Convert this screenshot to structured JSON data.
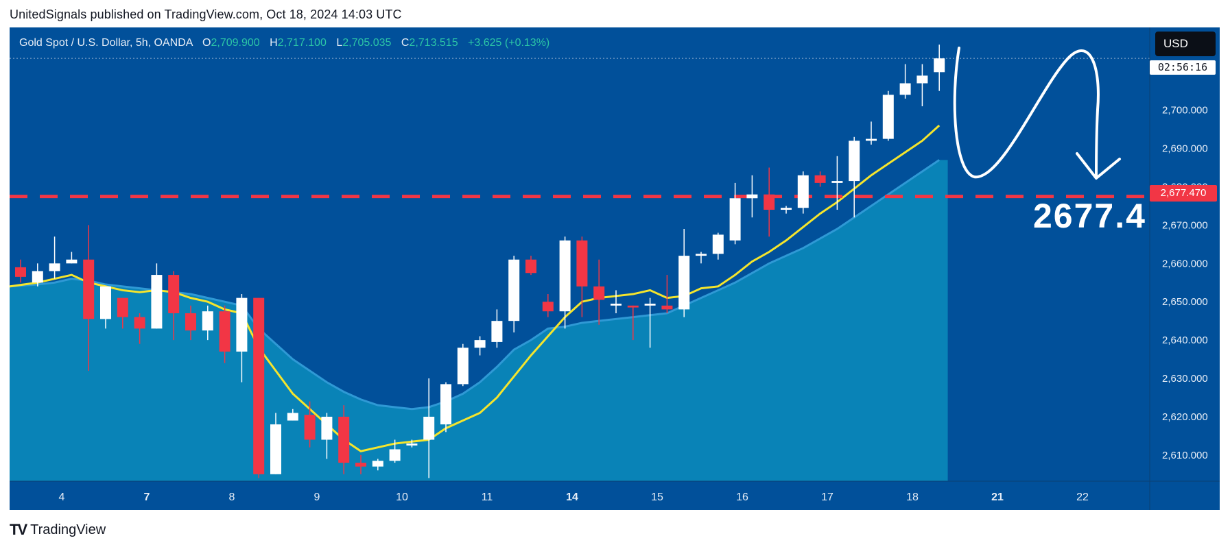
{
  "header": {
    "text": "UnitedSignals published on TradingView.com, Oct 18, 2024 14:03 UTC"
  },
  "legend": {
    "symbol": "Gold Spot / U.S. Dollar, 5h, OANDA",
    "open_label": "O",
    "open": "2,709.900",
    "high_label": "H",
    "high": "2,717.100",
    "low_label": "L",
    "low": "2,705.035",
    "close_label": "C",
    "close": "2,713.515",
    "change": "+3.625 (+0.13%)"
  },
  "price_scale": {
    "currency": "USD",
    "countdown": "02:56:16",
    "marked_price": "2,677.470"
  },
  "annotation": {
    "text": "2677.4"
  },
  "footer": {
    "brand": "TradingView"
  },
  "colors": {
    "background": "#01509a",
    "up": "#ffffff",
    "down": "#f23645",
    "ema_fast": "#f5e52c",
    "ema_slow": "#2f99d5",
    "area": "#0a86b8",
    "level": "#f23645"
  },
  "icons": {
    "logo": "tradingview-logo-icon"
  },
  "chart_data": {
    "type": "candlestick",
    "title": "Gold Spot / U.S. Dollar, 5h, OANDA",
    "y_ticks": [
      "2,610.000",
      "2,620.000",
      "2,630.000",
      "2,640.000",
      "2,650.000",
      "2,660.000",
      "2,670.000",
      "2,680.000",
      "2,690.000",
      "2,700.000"
    ],
    "ylim": [
      2603,
      2718
    ],
    "x_labels": [
      {
        "label": "4",
        "pos": 2.5
      },
      {
        "label": "7",
        "pos": 7.5
      },
      {
        "label": "8",
        "pos": 12.5
      },
      {
        "label": "9",
        "pos": 17.5
      },
      {
        "label": "10",
        "pos": 22.5
      },
      {
        "label": "11",
        "pos": 27.5
      },
      {
        "label": "14",
        "pos": 32.5
      },
      {
        "label": "15",
        "pos": 37.5
      },
      {
        "label": "16",
        "pos": 42.5
      },
      {
        "label": "17",
        "pos": 47.5
      },
      {
        "label": "18",
        "pos": 52.5
      },
      {
        "label": "21",
        "pos": 57.5
      },
      {
        "label": "22",
        "pos": 62.5
      }
    ],
    "x_labels_bold": [
      "7",
      "14",
      "21"
    ],
    "horizontal_line": 2677.47,
    "candles": [
      [
        2659,
        2656.5,
        2661,
        2655
      ],
      [
        2655,
        2658,
        2660,
        2654
      ],
      [
        2658,
        2660,
        2667,
        2656
      ],
      [
        2660,
        2661,
        2663,
        2660
      ],
      [
        2661,
        2645.5,
        2670,
        2632
      ],
      [
        2645.5,
        2654,
        2654,
        2643
      ],
      [
        2651,
        2646,
        2651,
        2643
      ],
      [
        2646,
        2643,
        2647,
        2639
      ],
      [
        2643,
        2657,
        2660,
        2643
      ],
      [
        2657,
        2647,
        2658,
        2640
      ],
      [
        2647,
        2642.5,
        2649,
        2640
      ],
      [
        2642.5,
        2647.5,
        2649,
        2640
      ],
      [
        2647.5,
        2637,
        2649,
        2634
      ],
      [
        2637,
        2651,
        2652,
        2629
      ],
      [
        2651,
        2605,
        2651,
        2604
      ],
      [
        2605,
        2618,
        2621,
        2605
      ],
      [
        2619,
        2621,
        2622,
        2619
      ],
      [
        2620.5,
        2614,
        2624,
        2612
      ],
      [
        2614,
        2620,
        2621,
        2609
      ],
      [
        2620,
        2608,
        2623,
        2605
      ],
      [
        2608,
        2607,
        2610,
        2605
      ],
      [
        2607,
        2608.5,
        2609,
        2606
      ],
      [
        2608.5,
        2611.5,
        2614,
        2608
      ],
      [
        2612.5,
        2613,
        2614,
        2612
      ],
      [
        2614,
        2620,
        2630,
        2604
      ],
      [
        2618,
        2628.5,
        2629,
        2616
      ],
      [
        2628.5,
        2638,
        2639,
        2628
      ],
      [
        2638,
        2640,
        2641,
        2636
      ],
      [
        2639.5,
        2645,
        2648,
        2638
      ],
      [
        2645,
        2661,
        2662,
        2642
      ],
      [
        2661,
        2657.5,
        2662,
        2657
      ],
      [
        2650,
        2647.5,
        2652,
        2646
      ],
      [
        2647.5,
        2666,
        2667,
        2643
      ],
      [
        2666,
        2654,
        2667,
        2646
      ],
      [
        2654,
        2650.5,
        2661,
        2644
      ],
      [
        2649,
        2649.5,
        2653,
        2647
      ],
      [
        2649,
        2648.5,
        2649,
        2640
      ],
      [
        2649,
        2649.5,
        2651,
        2638
      ],
      [
        2649,
        2648,
        2657,
        2647
      ],
      [
        2648,
        2662,
        2669,
        2646
      ],
      [
        2662,
        2662.5,
        2663,
        2660
      ],
      [
        2662.5,
        2667.5,
        2668,
        2661
      ],
      [
        2666,
        2677,
        2681,
        2665
      ],
      [
        2677,
        2678,
        2683,
        2672
      ],
      [
        2678,
        2674,
        2685,
        2667
      ],
      [
        2674,
        2674.5,
        2675,
        2673
      ],
      [
        2674.5,
        2683,
        2684,
        2673
      ],
      [
        2683,
        2681,
        2684,
        2680
      ],
      [
        2681,
        2681.5,
        2688,
        2674
      ],
      [
        2681.5,
        2692,
        2693,
        2672
      ],
      [
        2692,
        2692.5,
        2697,
        2691
      ],
      [
        2692.5,
        2704,
        2705,
        2692
      ],
      [
        2704,
        2707,
        2712,
        2703
      ],
      [
        2707,
        2709,
        2712,
        2701
      ],
      [
        2709.9,
        2713.5,
        2717.1,
        2705.0
      ]
    ],
    "ema_fast": [
      2654,
      2655,
      2656,
      2657,
      2655,
      2654,
      2653,
      2652.5,
      2653,
      2652.5,
      2651,
      2650,
      2648,
      2647,
      2638,
      2632,
      2626,
      2622,
      2618,
      2614,
      2611,
      2612,
      2613,
      2613.5,
      2614,
      2617,
      2619,
      2621,
      2625,
      2630.5,
      2636,
      2641,
      2646,
      2650,
      2651,
      2651.5,
      2652,
      2653,
      2651,
      2651.5,
      2653.5,
      2654,
      2657,
      2660.5,
      2663,
      2666,
      2669.5,
      2673,
      2676,
      2679.5,
      2683,
      2686,
      2689,
      2692,
      2696
    ],
    "ema_slow": [
      2654,
      2654.5,
      2655,
      2656,
      2655.5,
      2654.5,
      2654,
      2653.5,
      2653,
      2652.5,
      2652,
      2651,
      2650,
      2649,
      2643,
      2639,
      2635,
      2632,
      2629,
      2626.5,
      2624.5,
      2623,
      2622.5,
      2622,
      2622.5,
      2624,
      2626,
      2629,
      2633,
      2637.5,
      2640,
      2643,
      2643.5,
      2644.5,
      2645,
      2645.5,
      2646,
      2646.5,
      2647,
      2649,
      2651,
      2653,
      2655,
      2657.5,
      2660,
      2662,
      2664,
      2666.5,
      2669,
      2672,
      2675,
      2678,
      2681,
      2684,
      2687
    ]
  }
}
